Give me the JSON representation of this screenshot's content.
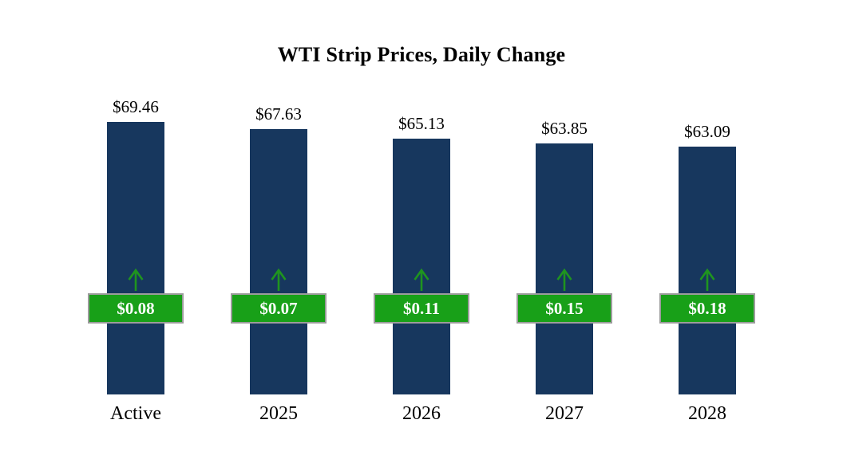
{
  "chart_data": {
    "type": "bar",
    "title": "WTI Strip Prices, Daily Change",
    "categories": [
      "Active",
      "2025",
      "2026",
      "2027",
      "2028"
    ],
    "series": [
      {
        "name": "Strip Price",
        "values": [
          69.46,
          67.63,
          65.13,
          63.85,
          63.09
        ],
        "labels": [
          "$69.46",
          "$67.63",
          "$65.13",
          "$63.85",
          "$63.09"
        ]
      },
      {
        "name": "Daily Change",
        "values": [
          0.08,
          0.07,
          0.11,
          0.15,
          0.18
        ],
        "labels": [
          "$0.08",
          "$0.07",
          "$0.11",
          "$0.15",
          "$0.18"
        ]
      }
    ],
    "ylim": [
      0,
      70
    ],
    "grid": false,
    "legend": "none",
    "colors": {
      "bar": "#17375E",
      "change_box": "#18A018",
      "change_border": "#9C9C9C",
      "arrow": "#1F941F"
    }
  }
}
